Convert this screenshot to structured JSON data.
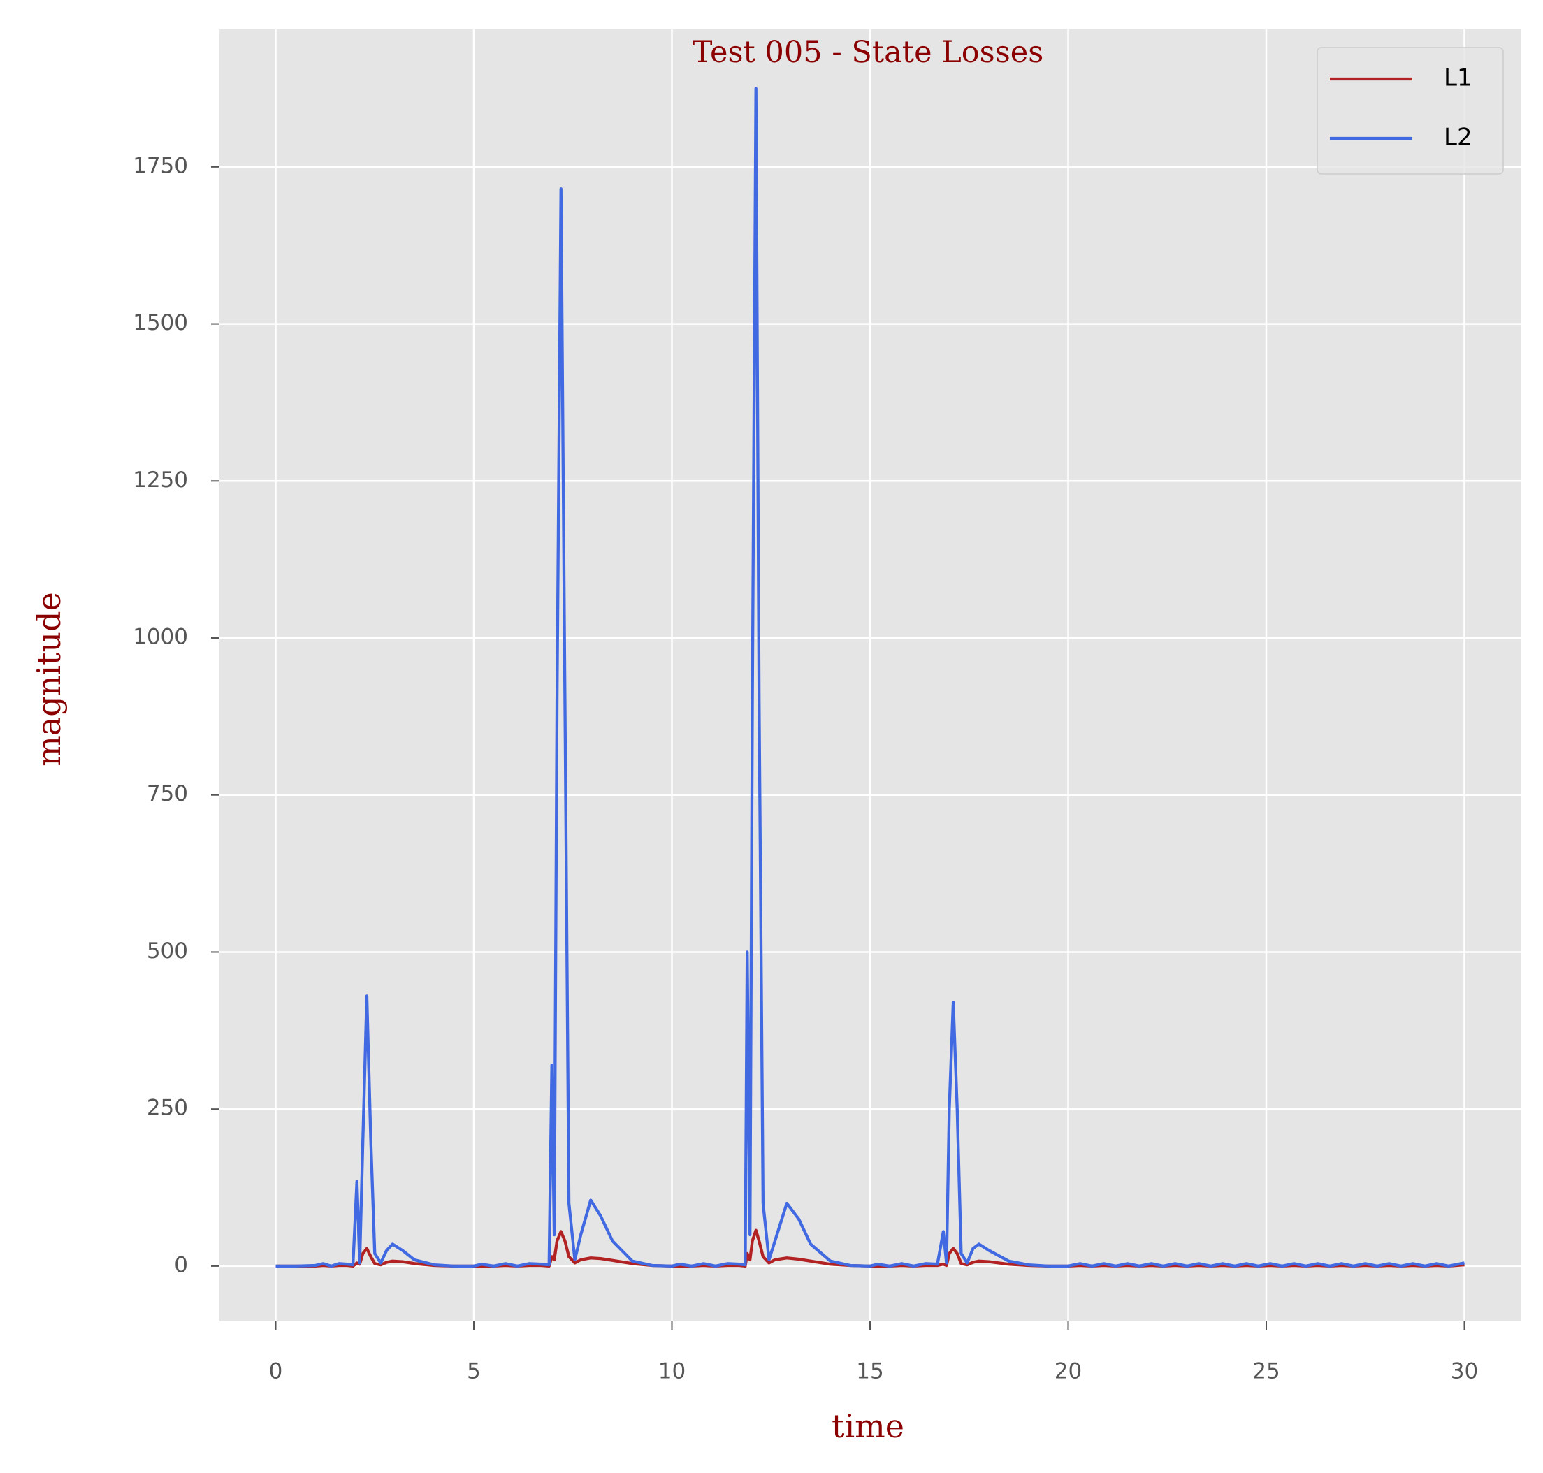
{
  "chart_data": {
    "type": "line",
    "title": "Test 005 - State Losses",
    "x_label": "time",
    "y_label": "magnitude",
    "x": [
      0,
      0.5,
      1.0,
      1.2,
      1.4,
      1.6,
      1.8,
      1.95,
      2.05,
      2.12,
      2.2,
      2.3,
      2.4,
      2.5,
      2.65,
      2.8,
      2.95,
      3.2,
      3.5,
      4.0,
      4.5,
      5.0,
      5.2,
      5.5,
      5.8,
      6.1,
      6.4,
      6.7,
      6.9,
      6.97,
      7.03,
      7.1,
      7.2,
      7.3,
      7.4,
      7.55,
      7.7,
      7.95,
      8.2,
      8.5,
      9.0,
      9.5,
      10.0,
      10.2,
      10.5,
      10.8,
      11.1,
      11.4,
      11.7,
      11.85,
      11.9,
      11.97,
      12.03,
      12.12,
      12.2,
      12.3,
      12.45,
      12.6,
      12.9,
      13.2,
      13.5,
      14.0,
      14.5,
      15.0,
      15.2,
      15.5,
      15.8,
      16.1,
      16.4,
      16.7,
      16.85,
      16.93,
      17.0,
      17.1,
      17.2,
      17.3,
      17.45,
      17.6,
      17.75,
      18.0,
      18.5,
      19.0,
      19.5,
      20.0,
      20.3,
      20.6,
      20.9,
      21.2,
      21.5,
      21.8,
      22.1,
      22.4,
      22.7,
      23.0,
      23.3,
      23.6,
      23.9,
      24.2,
      24.5,
      24.8,
      25.1,
      25.4,
      25.7,
      26.0,
      26.3,
      26.6,
      26.9,
      27.2,
      27.5,
      27.8,
      28.1,
      28.4,
      28.7,
      29.0,
      29.3,
      29.6,
      30.0
    ],
    "series": [
      {
        "name": "L1",
        "color": "#b22222",
        "values": [
          0,
          0,
          0,
          1,
          0,
          1,
          1,
          0,
          5,
          3,
          20,
          28,
          15,
          4,
          2,
          6,
          8,
          7,
          4,
          1,
          0,
          0,
          0,
          0,
          1,
          0,
          1,
          1,
          0,
          15,
          10,
          40,
          55,
          40,
          15,
          5,
          10,
          13,
          12,
          9,
          4,
          1,
          0,
          0,
          0,
          1,
          0,
          1,
          1,
          0,
          20,
          10,
          40,
          57,
          40,
          15,
          5,
          10,
          13,
          11,
          8,
          3,
          1,
          0,
          0,
          0,
          1,
          0,
          1,
          1,
          3,
          1,
          20,
          28,
          20,
          4,
          2,
          6,
          8,
          7,
          3,
          1,
          0,
          0,
          1,
          0,
          1,
          0,
          1,
          0,
          1,
          0,
          1,
          0,
          1,
          0,
          1,
          0,
          1,
          0,
          1,
          0,
          1,
          0,
          1,
          0,
          1,
          0,
          1,
          0,
          1,
          0,
          1,
          0,
          1,
          0,
          2
        ]
      },
      {
        "name": "L2",
        "color": "#4169e1",
        "values": [
          0,
          0,
          1,
          4,
          0,
          4,
          3,
          2,
          135,
          5,
          200,
          430,
          200,
          20,
          5,
          25,
          35,
          25,
          10,
          2,
          0,
          0,
          3,
          0,
          4,
          0,
          4,
          3,
          2,
          320,
          50,
          900,
          1715,
          900,
          100,
          10,
          50,
          105,
          80,
          40,
          8,
          1,
          0,
          3,
          0,
          4,
          0,
          4,
          3,
          2,
          500,
          50,
          900,
          1875,
          900,
          100,
          10,
          40,
          100,
          75,
          35,
          8,
          1,
          0,
          3,
          0,
          4,
          0,
          4,
          3,
          55,
          5,
          250,
          420,
          250,
          20,
          5,
          28,
          35,
          25,
          8,
          2,
          0,
          0,
          4,
          0,
          4,
          0,
          4,
          0,
          4,
          0,
          4,
          0,
          4,
          0,
          4,
          0,
          4,
          0,
          4,
          0,
          4,
          0,
          4,
          0,
          4,
          0,
          4,
          0,
          4,
          0,
          4,
          0,
          4,
          0,
          5
        ]
      }
    ],
    "xlim": [
      -1.42,
      31.42
    ],
    "ylim": [
      -88,
      1969
    ],
    "xticks": [
      0,
      5,
      10,
      15,
      20,
      25,
      30
    ],
    "yticks": [
      0,
      250,
      500,
      750,
      1000,
      1250,
      1500,
      1750
    ],
    "grid": true,
    "legend": "upper right"
  }
}
